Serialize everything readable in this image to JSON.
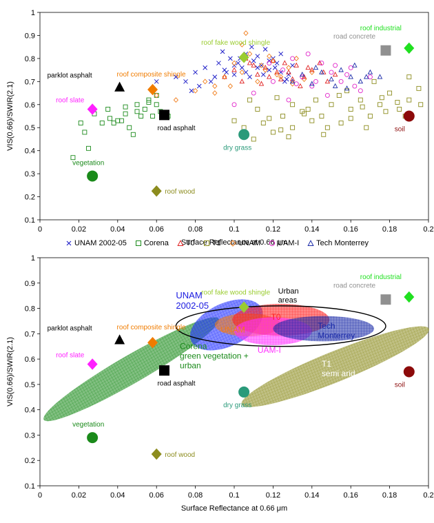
{
  "chart_data": [
    {
      "type": "scatter",
      "title": "",
      "xlabel": "Surface Reflectance at 0.66 μm",
      "ylabel": "VIS(0.66)/SWIR(2.1)",
      "xlim": [
        0,
        0.2
      ],
      "ylim": [
        0.1,
        1
      ],
      "xticks": [
        "0",
        "0.02",
        "0.04",
        "0.06",
        "0.08",
        "0.1",
        "0.12",
        "0.14",
        "0.16",
        "0.18",
        "0.2"
      ],
      "yticks": [
        "0.1",
        "0.2",
        "0.3",
        "0.4",
        "0.5",
        "0.6",
        "0.7",
        "0.8",
        "0.9",
        "1"
      ],
      "grid": false,
      "legend_position": "bottom",
      "series": [
        {
          "name": "UNAM 2002-05",
          "marker": "x",
          "color": "#1f1fc8",
          "x": [
            0.06,
            0.07,
            0.075,
            0.08,
            0.085,
            0.09,
            0.092,
            0.095,
            0.098,
            0.1,
            0.102,
            0.104,
            0.106,
            0.108,
            0.11,
            0.112,
            0.114,
            0.116,
            0.118,
            0.12,
            0.122,
            0.124,
            0.126,
            0.128,
            0.13,
            0.088,
            0.094,
            0.1,
            0.106,
            0.112,
            0.118,
            0.124,
            0.096,
            0.103,
            0.109,
            0.115,
            0.121,
            0.127,
            0.082,
            0.078
          ],
          "y": [
            0.7,
            0.72,
            0.7,
            0.74,
            0.76,
            0.72,
            0.78,
            0.75,
            0.8,
            0.73,
            0.78,
            0.76,
            0.82,
            0.72,
            0.79,
            0.81,
            0.77,
            0.84,
            0.75,
            0.8,
            0.78,
            0.74,
            0.7,
            0.73,
            0.77,
            0.7,
            0.83,
            0.77,
            0.74,
            0.76,
            0.79,
            0.82,
            0.74,
            0.8,
            0.85,
            0.73,
            0.76,
            0.71,
            0.68,
            0.66
          ]
        },
        {
          "name": "Corena",
          "marker": "square",
          "color": "#1a8a1a",
          "x": [
            0.017,
            0.021,
            0.023,
            0.025,
            0.028,
            0.032,
            0.035,
            0.038,
            0.04,
            0.042,
            0.044,
            0.046,
            0.048,
            0.05,
            0.052,
            0.054,
            0.056,
            0.058,
            0.06,
            0.062,
            0.064,
            0.066,
            0.036,
            0.044,
            0.05,
            0.056,
            0.06
          ],
          "y": [
            0.37,
            0.52,
            0.48,
            0.41,
            0.56,
            0.52,
            0.58,
            0.52,
            0.53,
            0.53,
            0.56,
            0.5,
            0.47,
            0.6,
            0.55,
            0.58,
            0.62,
            0.55,
            0.6,
            0.57,
            0.56,
            0.55,
            0.54,
            0.59,
            0.57,
            0.61,
            0.64
          ]
        },
        {
          "name": "T0",
          "marker": "triangle",
          "color": "#e02020",
          "x": [
            0.095,
            0.1,
            0.104,
            0.108,
            0.112,
            0.116,
            0.12,
            0.124,
            0.128,
            0.132,
            0.136,
            0.14,
            0.144,
            0.148,
            0.152,
            0.106,
            0.114,
            0.122,
            0.13,
            0.138,
            0.146,
            0.118,
            0.126,
            0.134,
            0.11
          ],
          "y": [
            0.72,
            0.75,
            0.7,
            0.78,
            0.73,
            0.76,
            0.79,
            0.71,
            0.74,
            0.77,
            0.72,
            0.75,
            0.78,
            0.7,
            0.73,
            0.8,
            0.69,
            0.74,
            0.71,
            0.76,
            0.74,
            0.72,
            0.78,
            0.68,
            0.77
          ]
        },
        {
          "name": "T1",
          "marker": "square",
          "color": "#8c8c1e",
          "x": [
            0.1,
            0.105,
            0.11,
            0.115,
            0.12,
            0.125,
            0.13,
            0.135,
            0.14,
            0.145,
            0.15,
            0.155,
            0.16,
            0.165,
            0.17,
            0.175,
            0.18,
            0.185,
            0.19,
            0.195,
            0.112,
            0.118,
            0.124,
            0.13,
            0.136,
            0.142,
            0.148,
            0.154,
            0.16,
            0.166,
            0.172,
            0.178,
            0.184,
            0.19,
            0.196,
            0.108,
            0.128,
            0.138,
            0.158,
            0.168,
            0.188,
            0.122,
            0.146,
            0.176
          ],
          "y": [
            0.53,
            0.5,
            0.45,
            0.52,
            0.48,
            0.55,
            0.5,
            0.57,
            0.53,
            0.55,
            0.6,
            0.52,
            0.58,
            0.62,
            0.55,
            0.6,
            0.65,
            0.58,
            0.62,
            0.67,
            0.58,
            0.54,
            0.49,
            0.6,
            0.56,
            0.62,
            0.5,
            0.64,
            0.54,
            0.59,
            0.7,
            0.57,
            0.61,
            0.72,
            0.6,
            0.62,
            0.46,
            0.58,
            0.66,
            0.5,
            0.55,
            0.63,
            0.47,
            0.63
          ]
        },
        {
          "name": "UNAM",
          "marker": "diamond",
          "color": "#f07c1a",
          "x": [
            0.06,
            0.07,
            0.08,
            0.085,
            0.09,
            0.095,
            0.1,
            0.104,
            0.108,
            0.112,
            0.116,
            0.12,
            0.124,
            0.128,
            0.132,
            0.136,
            0.14,
            0.098,
            0.106,
            0.114,
            0.122,
            0.13,
            0.09,
            0.104,
            0.118
          ],
          "y": [
            0.64,
            0.62,
            0.66,
            0.7,
            0.68,
            0.72,
            0.78,
            0.74,
            0.82,
            0.7,
            0.75,
            0.79,
            0.72,
            0.76,
            0.8,
            0.71,
            0.74,
            0.68,
            0.91,
            0.77,
            0.73,
            0.69,
            0.65,
            0.86,
            0.81
          ]
        },
        {
          "name": "UAM-I",
          "marker": "circle",
          "color": "#e020c8",
          "x": [
            0.1,
            0.11,
            0.12,
            0.125,
            0.13,
            0.135,
            0.14,
            0.145,
            0.15,
            0.155,
            0.16,
            0.165,
            0.17,
            0.128,
            0.138,
            0.148,
            0.158,
            0.118,
            0.142,
            0.152,
            0.132,
            0.162
          ],
          "y": [
            0.6,
            0.65,
            0.7,
            0.75,
            0.8,
            0.72,
            0.68,
            0.78,
            0.74,
            0.7,
            0.76,
            0.66,
            0.72,
            0.62,
            0.82,
            0.64,
            0.73,
            0.78,
            0.7,
            0.77,
            0.69,
            0.68
          ]
        },
        {
          "name": "Tech Monterrey",
          "marker": "triangle",
          "color": "#1a2aa8",
          "x": [
            0.13,
            0.135,
            0.14,
            0.145,
            0.15,
            0.155,
            0.16,
            0.165,
            0.17,
            0.175,
            0.142,
            0.152,
            0.162,
            0.158,
            0.168
          ],
          "y": [
            0.7,
            0.73,
            0.69,
            0.74,
            0.71,
            0.75,
            0.72,
            0.7,
            0.74,
            0.72,
            0.76,
            0.68,
            0.77,
            0.67,
            0.72
          ]
        }
      ],
      "reference_points": [
        {
          "label": "parklot asphalt",
          "x": 0.041,
          "y": 0.675,
          "marker": "triangle",
          "color": "#000000"
        },
        {
          "label": "roof composite shingle",
          "x": 0.058,
          "y": 0.665,
          "marker": "diamond",
          "color": "#f07c00"
        },
        {
          "label": "roof slate",
          "x": 0.027,
          "y": 0.58,
          "marker": "diamond",
          "color": "#ff20ff"
        },
        {
          "label": "road asphalt",
          "x": 0.064,
          "y": 0.555,
          "marker": "square",
          "color": "#000000"
        },
        {
          "label": "vegetation",
          "x": 0.027,
          "y": 0.29,
          "marker": "circle",
          "color": "#1a8a1a"
        },
        {
          "label": "roof wood",
          "x": 0.06,
          "y": 0.225,
          "marker": "diamond",
          "color": "#8c8c1e"
        },
        {
          "label": "dry grass",
          "x": 0.105,
          "y": 0.47,
          "marker": "circle",
          "color": "#2a9a7a"
        },
        {
          "label": "roof fake wood shingle",
          "x": 0.105,
          "y": 0.805,
          "marker": "diamond",
          "color": "#9acc30"
        },
        {
          "label": "road concrete",
          "x": 0.178,
          "y": 0.835,
          "marker": "square",
          "color": "#909090"
        },
        {
          "label": "roof industrial",
          "x": 0.19,
          "y": 0.845,
          "marker": "diamond",
          "color": "#20e020"
        },
        {
          "label": "soil",
          "x": 0.19,
          "y": 0.55,
          "marker": "circle",
          "color": "#8c0a0a"
        }
      ]
    },
    {
      "type": "scatter",
      "title": "",
      "xlabel": "Surface Reflectance at 0.66 μm",
      "ylabel": "VIS(0.66)/SWIR(2.1)",
      "xlim": [
        0,
        0.2
      ],
      "ylim": [
        0.1,
        1
      ],
      "xticks": [
        "0",
        "0.02",
        "0.04",
        "0.06",
        "0.08",
        "0.1",
        "0.12",
        "0.14",
        "0.16",
        "0.18",
        "0.2"
      ],
      "yticks": [
        "0.1",
        "0.2",
        "0.3",
        "0.4",
        "0.5",
        "0.6",
        "0.7",
        "0.8",
        "0.9",
        "1"
      ],
      "grid": false,
      "reference_points": [
        {
          "label": "parklot asphalt",
          "x": 0.041,
          "y": 0.675,
          "marker": "triangle",
          "color": "#000000"
        },
        {
          "label": "roof composite shingle",
          "x": 0.058,
          "y": 0.665,
          "marker": "diamond",
          "color": "#f07c00"
        },
        {
          "label": "roof slate",
          "x": 0.027,
          "y": 0.58,
          "marker": "diamond",
          "color": "#ff20ff"
        },
        {
          "label": "road asphalt",
          "x": 0.064,
          "y": 0.555,
          "marker": "square",
          "color": "#000000"
        },
        {
          "label": "vegetation",
          "x": 0.027,
          "y": 0.29,
          "marker": "circle",
          "color": "#1a8a1a"
        },
        {
          "label": "roof wood",
          "x": 0.06,
          "y": 0.225,
          "marker": "diamond",
          "color": "#8c8c1e"
        },
        {
          "label": "dry grass",
          "x": 0.105,
          "y": 0.47,
          "marker": "circle",
          "color": "#2a9a7a"
        },
        {
          "label": "roof fake wood shingle",
          "x": 0.105,
          "y": 0.805,
          "marker": "diamond",
          "color": "#9acc30"
        },
        {
          "label": "road concrete",
          "x": 0.178,
          "y": 0.835,
          "marker": "square",
          "color": "#909090"
        },
        {
          "label": "roof industrial",
          "x": 0.19,
          "y": 0.845,
          "marker": "diamond",
          "color": "#20e020"
        },
        {
          "label": "soil",
          "x": 0.19,
          "y": 0.55,
          "marker": "circle",
          "color": "#8c0a0a"
        }
      ],
      "regions": [
        {
          "label": "Corena green vegetation + urban",
          "label_lines": [
            "Corena",
            "green vegetation +",
            "urban"
          ],
          "color": "#1a8a1a",
          "label_color": "#1a8a1a",
          "cx": 0.047,
          "cy": 0.56,
          "rx": 0.052,
          "ry": 0.055,
          "angle_deg": 30
        },
        {
          "label": "UNAM 2002-05",
          "label_lines": [
            "UNAM",
            "2002-05"
          ],
          "color": "#2030ff",
          "label_color": "#1a1ae0",
          "cx": 0.096,
          "cy": 0.735,
          "rx": 0.02,
          "ry": 0.085,
          "angle_deg": 25
        },
        {
          "label": "UNAM",
          "label_lines": [
            "UNAM"
          ],
          "color": "#f07c1a",
          "label_color": "#f07c1a",
          "cx": 0.107,
          "cy": 0.735,
          "rx": 0.017,
          "ry": 0.045,
          "angle_deg": 0
        },
        {
          "label": "T0",
          "label_lines": [
            "T0"
          ],
          "color": "#ff2020",
          "label_color": "#ff2020",
          "cx": 0.124,
          "cy": 0.755,
          "rx": 0.025,
          "ry": 0.063,
          "angle_deg": 0
        },
        {
          "label": "UAM-I",
          "label_lines": [
            "UAM-I"
          ],
          "color": "#ff30ff",
          "label_color": "#ff30ff",
          "cx": 0.12,
          "cy": 0.71,
          "rx": 0.02,
          "ry": 0.055,
          "angle_deg": 0
        },
        {
          "label": "Tech Monterrey",
          "label_lines": [
            "Tech",
            "Monterrey"
          ],
          "color": "#1a2aa8",
          "label_color": "#1a2aa8",
          "cx": 0.146,
          "cy": 0.72,
          "rx": 0.026,
          "ry": 0.05,
          "angle_deg": 0
        },
        {
          "label": "T1 semi arid",
          "label_lines": [
            "T1",
            "semi arid"
          ],
          "color": "#8c8c1e",
          "label_color": "#ffffff",
          "cx": 0.152,
          "cy": 0.57,
          "rx": 0.052,
          "ry": 0.06,
          "angle_deg": 22
        }
      ],
      "outline_region": {
        "label": "Urban areas",
        "label_lines": [
          "Urban",
          "areas"
        ],
        "cx": 0.124,
        "cy": 0.73,
        "rx": 0.054,
        "ry": 0.08
      }
    }
  ]
}
